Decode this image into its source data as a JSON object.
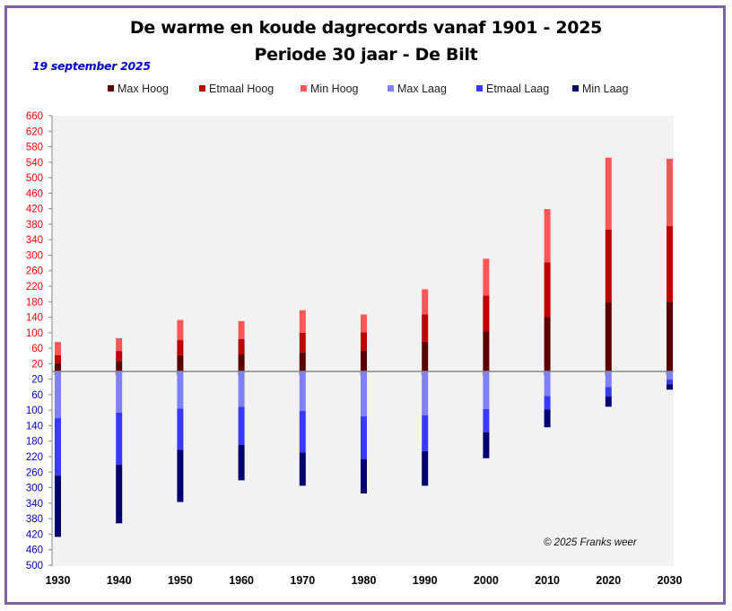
{
  "header": {
    "title_line1": "De warme en koude dagrecords vanaf 1901 - 2025",
    "title_line2": "Periode 30 jaar - De Bilt",
    "date": "19 september 2025",
    "copyright": "© 2025 Franks weer"
  },
  "colors": {
    "frame": "#8064a2",
    "plot_bg": "#f2f2f2",
    "positive_tick": "#ff0000",
    "negative_tick": "#0000cc",
    "axis": "#888888"
  },
  "chart_data": {
    "type": "bar",
    "stacked": true,
    "diverging": true,
    "title": "De warme en koude dagrecords vanaf 1901 - 2025 / Periode 30 jaar - De Bilt",
    "xlabel": "",
    "ylabel": "",
    "ylim": [
      -500,
      660
    ],
    "legend_position": "top",
    "grid": false,
    "categories": [
      "1930",
      "1940",
      "1950",
      "1960",
      "1970",
      "1980",
      "1990",
      "2000",
      "2010",
      "2020",
      "2030"
    ],
    "y_ticks_positive": [
      20,
      60,
      100,
      140,
      180,
      220,
      260,
      300,
      340,
      380,
      420,
      460,
      500,
      540,
      580,
      620,
      660
    ],
    "y_ticks_negative": [
      20,
      60,
      100,
      140,
      180,
      220,
      260,
      300,
      340,
      380,
      420,
      460,
      500
    ],
    "series": [
      {
        "name": "Max Hoog",
        "color": "#5a0000",
        "direction": "up",
        "values": [
          21,
          27,
          42,
          44,
          49,
          54,
          77,
          103,
          140,
          180,
          180
        ]
      },
      {
        "name": "Etmaal Hoog",
        "color": "#c00000",
        "direction": "up",
        "values": [
          21,
          26,
          39,
          40,
          51,
          47,
          70,
          93,
          142,
          186,
          195
        ]
      },
      {
        "name": "Min Hoog",
        "color": "#ff5757",
        "direction": "up",
        "values": [
          34,
          33,
          52,
          46,
          58,
          46,
          65,
          95,
          137,
          186,
          174
        ]
      },
      {
        "name": "Max Laag",
        "color": "#8080ff",
        "direction": "down",
        "values": [
          120,
          106,
          96,
          91,
          102,
          116,
          113,
          97,
          63,
          40,
          21
        ]
      },
      {
        "name": "Etmaal Laag",
        "color": "#3a3aff",
        "direction": "down",
        "values": [
          149,
          135,
          106,
          99,
          107,
          111,
          93,
          60,
          35,
          25,
          12
        ]
      },
      {
        "name": "Min Laag",
        "color": "#000070",
        "direction": "down",
        "values": [
          158,
          151,
          135,
          91,
          86,
          88,
          89,
          67,
          46,
          26,
          14
        ]
      }
    ]
  }
}
